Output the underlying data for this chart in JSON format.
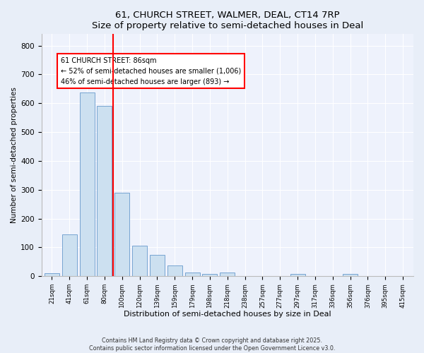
{
  "title": "61, CHURCH STREET, WALMER, DEAL, CT14 7RP",
  "subtitle": "Size of property relative to semi-detached houses in Deal",
  "xlabel": "Distribution of semi-detached houses by size in Deal",
  "ylabel": "Number of semi-detached properties",
  "categories": [
    "21sqm",
    "41sqm",
    "61sqm",
    "80sqm",
    "100sqm",
    "120sqm",
    "139sqm",
    "159sqm",
    "179sqm",
    "198sqm",
    "218sqm",
    "238sqm",
    "257sqm",
    "277sqm",
    "297sqm",
    "317sqm",
    "336sqm",
    "356sqm",
    "376sqm",
    "395sqm",
    "415sqm"
  ],
  "values": [
    10,
    145,
    638,
    590,
    290,
    105,
    75,
    37,
    14,
    8,
    13,
    0,
    0,
    0,
    8,
    0,
    0,
    8,
    0,
    0,
    0
  ],
  "bar_color": "#cce0f0",
  "bar_edge_color": "#6699cc",
  "vline_color": "red",
  "annotation_title": "61 CHURCH STREET: 86sqm",
  "annotation_line1": "← 52% of semi-detached houses are smaller (1,006)",
  "annotation_line2": "46% of semi-detached houses are larger (893) →",
  "ylim": [
    0,
    840
  ],
  "yticks": [
    0,
    100,
    200,
    300,
    400,
    500,
    600,
    700,
    800
  ],
  "footer": "Contains HM Land Registry data © Crown copyright and database right 2025.\nContains public sector information licensed under the Open Government Licence v3.0.",
  "bg_color": "#e8eef8",
  "plot_bg_color": "#eef2fc"
}
